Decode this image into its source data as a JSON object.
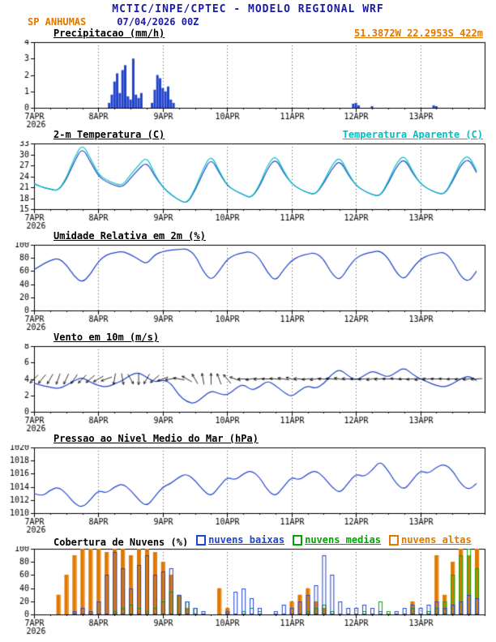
{
  "header": {
    "title": "MCTIC/INPE/CPTEC - MODELO REGIONAL WRF",
    "station": "SP ANHUMAS",
    "run": "07/04/2026 00Z",
    "location": "51.3872W 22.2953S 422m"
  },
  "colors": {
    "navy": "#1a1aa6",
    "orange": "#e07800",
    "line_blue": "#2244cc",
    "cyan": "#00c2c2",
    "green": "#00a400",
    "black": "#000000"
  },
  "x_axis": {
    "day_labels": [
      "7APR",
      "8APR",
      "9APR",
      "10APR",
      "11APR",
      "12APR",
      "13APR"
    ],
    "year_label": "2026",
    "day_hours": [
      0,
      24,
      48,
      72,
      96,
      120,
      144
    ],
    "total_hours": 168,
    "minor_step": 6,
    "hours_start": 0,
    "hours_step": 3
  },
  "chart_data": [
    {
      "type": "bar",
      "title": "Precipitacao (mm/h)",
      "ylim": [
        0,
        4
      ],
      "yticks": [
        0,
        1,
        2,
        3,
        4
      ],
      "bar_color": "#2244cc",
      "bars": [
        [
          28,
          0.3
        ],
        [
          29,
          0.8
        ],
        [
          30,
          1.6
        ],
        [
          31,
          2.1
        ],
        [
          32,
          0.9
        ],
        [
          33,
          2.3
        ],
        [
          34,
          2.6
        ],
        [
          35,
          0.7
        ],
        [
          36,
          0.5
        ],
        [
          37,
          3.0
        ],
        [
          38,
          0.8
        ],
        [
          39,
          0.6
        ],
        [
          40,
          0.9
        ],
        [
          44,
          0.3
        ],
        [
          45,
          1.1
        ],
        [
          46,
          2.0
        ],
        [
          47,
          1.8
        ],
        [
          48,
          1.2
        ],
        [
          49,
          1.0
        ],
        [
          50,
          1.3
        ],
        [
          51,
          0.5
        ],
        [
          52,
          0.3
        ],
        [
          119,
          0.25
        ],
        [
          120,
          0.3
        ],
        [
          121,
          0.15
        ],
        [
          126,
          0.1
        ],
        [
          149,
          0.15
        ],
        [
          150,
          0.1
        ]
      ]
    },
    {
      "type": "line",
      "title": "2-m Temperatura (C)",
      "legend": "Temperatura Aparente (C)",
      "ylim": [
        15,
        33
      ],
      "yticks": [
        15,
        18,
        21,
        24,
        27,
        30,
        33
      ],
      "series": [
        {
          "name": "2-m Temperatura",
          "color": "#2244cc",
          "values": [
            22,
            21,
            20.5,
            20,
            23,
            28,
            32,
            28,
            24,
            22.5,
            21.5,
            21,
            23.5,
            26,
            28,
            24,
            21,
            19,
            17.5,
            16.5,
            20,
            25,
            29,
            25,
            21.5,
            20,
            19,
            18,
            21,
            26,
            29,
            25,
            22,
            20.5,
            19.5,
            19,
            22,
            26,
            28.5,
            24.5,
            21.5,
            20,
            19,
            18.5,
            22,
            26.5,
            29,
            25,
            22,
            20.5,
            19.5,
            19,
            22.5,
            27,
            29,
            25
          ]
        },
        {
          "name": "Temperatura Aparente",
          "color": "#00c2c2",
          "values": [
            22,
            21,
            20.5,
            20,
            23.5,
            29,
            33,
            29,
            24.5,
            23,
            22,
            21.5,
            24.5,
            27,
            29.5,
            24.5,
            21,
            19,
            17.5,
            16.5,
            20.5,
            26,
            30,
            25.5,
            21.5,
            20,
            19,
            18,
            21.5,
            27,
            30,
            25.5,
            22,
            20.5,
            19.5,
            19,
            22.5,
            27,
            29.5,
            25,
            21.5,
            20,
            19,
            18.5,
            22.5,
            27.5,
            30,
            25.5,
            22,
            20.5,
            19.5,
            19,
            23,
            28,
            30,
            25.5
          ]
        }
      ]
    },
    {
      "type": "line",
      "title": "Umidade Relativa em 2m (%)",
      "ylim": [
        0,
        100
      ],
      "yticks": [
        0,
        20,
        40,
        60,
        80,
        100
      ],
      "series": [
        {
          "name": "Umidade Relativa",
          "color": "#2244cc",
          "values": [
            62,
            70,
            76,
            80,
            70,
            52,
            42,
            55,
            75,
            85,
            88,
            90,
            85,
            78,
            70,
            85,
            90,
            92,
            93,
            94,
            85,
            60,
            45,
            60,
            78,
            85,
            88,
            90,
            80,
            58,
            44,
            62,
            76,
            83,
            86,
            88,
            78,
            56,
            45,
            65,
            80,
            86,
            89,
            91,
            80,
            58,
            46,
            64,
            78,
            84,
            87,
            89,
            76,
            52,
            43,
            60
          ]
        }
      ]
    },
    {
      "type": "wind",
      "title": "Vento em 10m (m/s)",
      "ylim": [
        0,
        8
      ],
      "yticks": [
        0,
        2,
        4,
        6,
        8
      ],
      "series": [
        {
          "name": "Vento em 10m",
          "color": "#2244cc",
          "values": [
            3.5,
            3.2,
            3.0,
            2.8,
            3.2,
            3.8,
            4.2,
            3.6,
            3.2,
            3.0,
            3.4,
            3.8,
            4.5,
            4.8,
            4.2,
            3.6,
            3.9,
            3.5,
            2.0,
            1.2,
            1.0,
            1.8,
            2.6,
            2.2,
            2.0,
            2.8,
            3.4,
            2.6,
            3.0,
            3.8,
            3.2,
            2.4,
            1.8,
            2.6,
            3.2,
            2.8,
            3.4,
            4.6,
            5.2,
            4.4,
            3.8,
            4.4,
            5.0,
            4.6,
            4.2,
            4.8,
            5.4,
            4.6,
            4.0,
            3.6,
            3.2,
            3.0,
            3.4,
            4.0,
            4.4,
            3.8
          ]
        }
      ],
      "vectors": {
        "level": 4,
        "color": "#000000",
        "angles": [
          225,
          230,
          240,
          250,
          245,
          235,
          225,
          220,
          210,
          200,
          260,
          280,
          300,
          270,
          240,
          220,
          200,
          190,
          170,
          150,
          120,
          100,
          90,
          110,
          130,
          160,
          180,
          190,
          185,
          180,
          175,
          170,
          165,
          175,
          185,
          190,
          180,
          175,
          170,
          175,
          180,
          185,
          190,
          185,
          180,
          175,
          180,
          185,
          190,
          185,
          180,
          178,
          182,
          185,
          188,
          184
        ]
      }
    },
    {
      "type": "line",
      "title": "Pressao ao Nivel Medio do Mar (hPa)",
      "ylim": [
        1010,
        1020
      ],
      "yticks": [
        1010,
        1012,
        1014,
        1016,
        1018,
        1020
      ],
      "series": [
        {
          "name": "Pressao ao Nivel Medio do Mar",
          "color": "#2244cc",
          "values": [
            1013,
            1012.5,
            1013.5,
            1014,
            1013,
            1011.5,
            1010.8,
            1012,
            1013.5,
            1013,
            1014,
            1014.5,
            1013.5,
            1012,
            1011,
            1012.5,
            1014,
            1014.5,
            1015.5,
            1016,
            1015,
            1013.5,
            1012.5,
            1014,
            1015.5,
            1015,
            1016,
            1016.5,
            1015.5,
            1013.5,
            1012.5,
            1014,
            1015.5,
            1015,
            1016,
            1016.5,
            1015.5,
            1014,
            1013,
            1014.5,
            1016,
            1015.5,
            1016.5,
            1018,
            1016.5,
            1014.5,
            1013.5,
            1015,
            1016.5,
            1016,
            1017,
            1017.5,
            1016.5,
            1014.5,
            1013.5,
            1014.5
          ]
        }
      ]
    },
    {
      "type": "cloud",
      "title": "Cobertura de Nuvens (%)",
      "ylim": [
        0,
        100
      ],
      "yticks": [
        0,
        20,
        40,
        60,
        80,
        100
      ],
      "series": [
        {
          "name": "nuvens baixas",
          "color": "#2244cc",
          "fill": false,
          "values": [
            0,
            0,
            0,
            0,
            0,
            5,
            10,
            5,
            20,
            60,
            95,
            70,
            40,
            75,
            90,
            60,
            65,
            70,
            30,
            20,
            10,
            5,
            0,
            0,
            5,
            35,
            40,
            25,
            10,
            0,
            5,
            15,
            10,
            20,
            30,
            45,
            90,
            60,
            20,
            10,
            10,
            15,
            10,
            5,
            0,
            5,
            10,
            15,
            10,
            15,
            20,
            10,
            15,
            20,
            30,
            25
          ]
        },
        {
          "name": "nuvens medias",
          "color": "#00a400",
          "fill": false,
          "values": [
            0,
            0,
            0,
            0,
            0,
            0,
            0,
            0,
            0,
            0,
            5,
            10,
            15,
            10,
            5,
            10,
            20,
            35,
            30,
            20,
            10,
            0,
            0,
            0,
            0,
            0,
            5,
            10,
            5,
            0,
            0,
            0,
            0,
            0,
            5,
            10,
            15,
            5,
            0,
            0,
            0,
            5,
            10,
            20,
            5,
            0,
            0,
            10,
            0,
            5,
            10,
            20,
            60,
            90,
            100,
            70
          ]
        },
        {
          "name": "nuvens altas",
          "color": "#e07800",
          "fill": true,
          "values": [
            0,
            0,
            0,
            30,
            60,
            90,
            100,
            100,
            100,
            95,
            100,
            100,
            90,
            100,
            100,
            95,
            80,
            60,
            30,
            10,
            0,
            0,
            0,
            40,
            10,
            0,
            0,
            0,
            0,
            0,
            0,
            0,
            20,
            30,
            40,
            20,
            10,
            0,
            0,
            0,
            0,
            0,
            0,
            0,
            0,
            0,
            0,
            20,
            0,
            0,
            90,
            30,
            80,
            100,
            90,
            100
          ]
        }
      ]
    }
  ]
}
